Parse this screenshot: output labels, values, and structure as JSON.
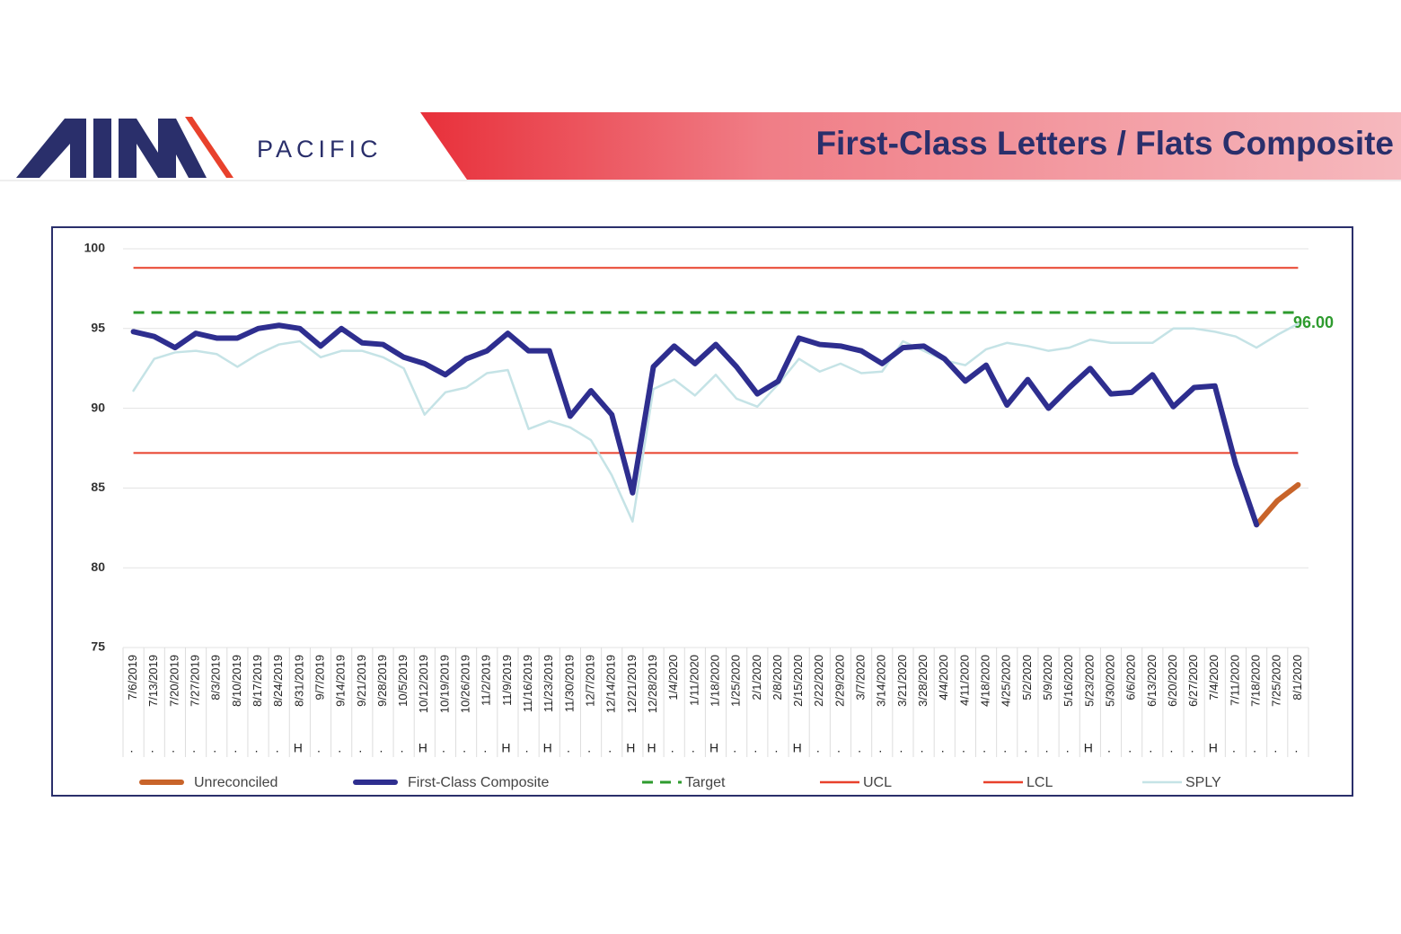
{
  "header": {
    "brand": "PACIFIC",
    "title": "First-Class Letters / Flats Composite"
  },
  "chart_data": {
    "type": "line",
    "categories": [
      "7/6/2019",
      "7/13/2019",
      "7/20/2019",
      "7/27/2019",
      "8/3/2019",
      "8/10/2019",
      "8/17/2019",
      "8/24/2019",
      "8/31/2019",
      "9/7/2019",
      "9/14/2019",
      "9/21/2019",
      "9/28/2019",
      "10/5/2019",
      "10/12/2019",
      "10/19/2019",
      "10/26/2019",
      "11/2/2019",
      "11/9/2019",
      "11/16/2019",
      "11/23/2019",
      "11/30/2019",
      "12/7/2019",
      "12/14/2019",
      "12/21/2019",
      "12/28/2019",
      "1/4/2020",
      "1/11/2020",
      "1/18/2020",
      "1/25/2020",
      "2/1/2020",
      "2/8/2020",
      "2/15/2020",
      "2/22/2020",
      "2/29/2020",
      "3/7/2020",
      "3/14/2020",
      "3/21/2020",
      "3/28/2020",
      "4/4/2020",
      "4/11/2020",
      "4/18/2020",
      "4/25/2020",
      "5/2/2020",
      "5/9/2020",
      "5/16/2020",
      "5/23/2020",
      "5/30/2020",
      "6/6/2020",
      "6/13/2020",
      "6/20/2020",
      "6/27/2020",
      "7/4/2020",
      "7/11/2020",
      "7/18/2020",
      "7/25/2020",
      "8/1/2020"
    ],
    "holiday_flags": [
      ".",
      ".",
      ".",
      ".",
      ".",
      ".",
      ".",
      ".",
      "H",
      ".",
      ".",
      ".",
      ".",
      ".",
      "H",
      ".",
      ".",
      ".",
      "H",
      ".",
      "H",
      ".",
      ".",
      ".",
      "H",
      "H",
      ".",
      ".",
      "H",
      ".",
      ".",
      ".",
      "H",
      ".",
      ".",
      ".",
      ".",
      ".",
      ".",
      ".",
      ".",
      ".",
      ".",
      ".",
      ".",
      ".",
      "H",
      ".",
      ".",
      ".",
      ".",
      ".",
      "H",
      ".",
      ".",
      ".",
      "."
    ],
    "series": [
      {
        "name": "Unreconciled",
        "color": "#c8642a",
        "values": [
          null,
          null,
          null,
          null,
          null,
          null,
          null,
          null,
          null,
          null,
          null,
          null,
          null,
          null,
          null,
          null,
          null,
          null,
          null,
          null,
          null,
          null,
          null,
          null,
          null,
          null,
          null,
          null,
          null,
          null,
          null,
          null,
          null,
          null,
          null,
          null,
          null,
          null,
          null,
          null,
          null,
          null,
          null,
          null,
          null,
          null,
          null,
          null,
          null,
          null,
          null,
          null,
          null,
          null,
          82.7,
          84.2,
          85.2
        ]
      },
      {
        "name": "First-Class Composite",
        "color": "#2e2e8f",
        "values": [
          94.8,
          94.5,
          93.8,
          94.7,
          94.4,
          94.4,
          95.0,
          95.2,
          95.0,
          93.9,
          95.0,
          94.1,
          94.0,
          93.2,
          92.8,
          92.1,
          93.1,
          93.6,
          94.7,
          93.6,
          93.6,
          89.5,
          91.1,
          89.6,
          84.7,
          92.6,
          93.9,
          92.8,
          94.0,
          92.6,
          90.9,
          91.7,
          94.4,
          94.0,
          93.9,
          93.6,
          92.8,
          93.8,
          93.9,
          93.1,
          91.7,
          92.7,
          90.2,
          91.8,
          90.0,
          91.3,
          92.5,
          90.9,
          91.0,
          92.1,
          90.1,
          91.3,
          91.4,
          86.5,
          82.7,
          null,
          null
        ]
      },
      {
        "name": "Target",
        "color": "#2e9b2e",
        "dashed": true,
        "value": 96,
        "value_label": "96.00"
      },
      {
        "name": "UCL",
        "color": "#e8412c",
        "value": 98.8
      },
      {
        "name": "LCL",
        "color": "#e8412c",
        "value": 87.2
      },
      {
        "name": "SPLY",
        "color": "#c5e3e6",
        "values": [
          91.1,
          93.1,
          93.5,
          93.6,
          93.4,
          92.6,
          93.4,
          94.0,
          94.2,
          93.2,
          93.6,
          93.6,
          93.2,
          92.5,
          89.6,
          91.0,
          91.3,
          92.2,
          92.4,
          88.7,
          89.2,
          88.8,
          88.0,
          85.8,
          82.9,
          91.2,
          91.8,
          90.8,
          92.1,
          90.6,
          90.1,
          91.5,
          93.1,
          92.3,
          92.8,
          92.2,
          92.3,
          94.2,
          93.6,
          93.0,
          92.7,
          93.7,
          94.1,
          93.9,
          93.6,
          93.8,
          94.3,
          94.1,
          94.1,
          94.1,
          95.0,
          95.0,
          94.8,
          94.5,
          93.8,
          94.6,
          95.3
        ]
      }
    ],
    "ylim": [
      75,
      100
    ],
    "yticks": [
      75,
      80,
      85,
      90,
      95,
      100
    ],
    "grid": true
  }
}
